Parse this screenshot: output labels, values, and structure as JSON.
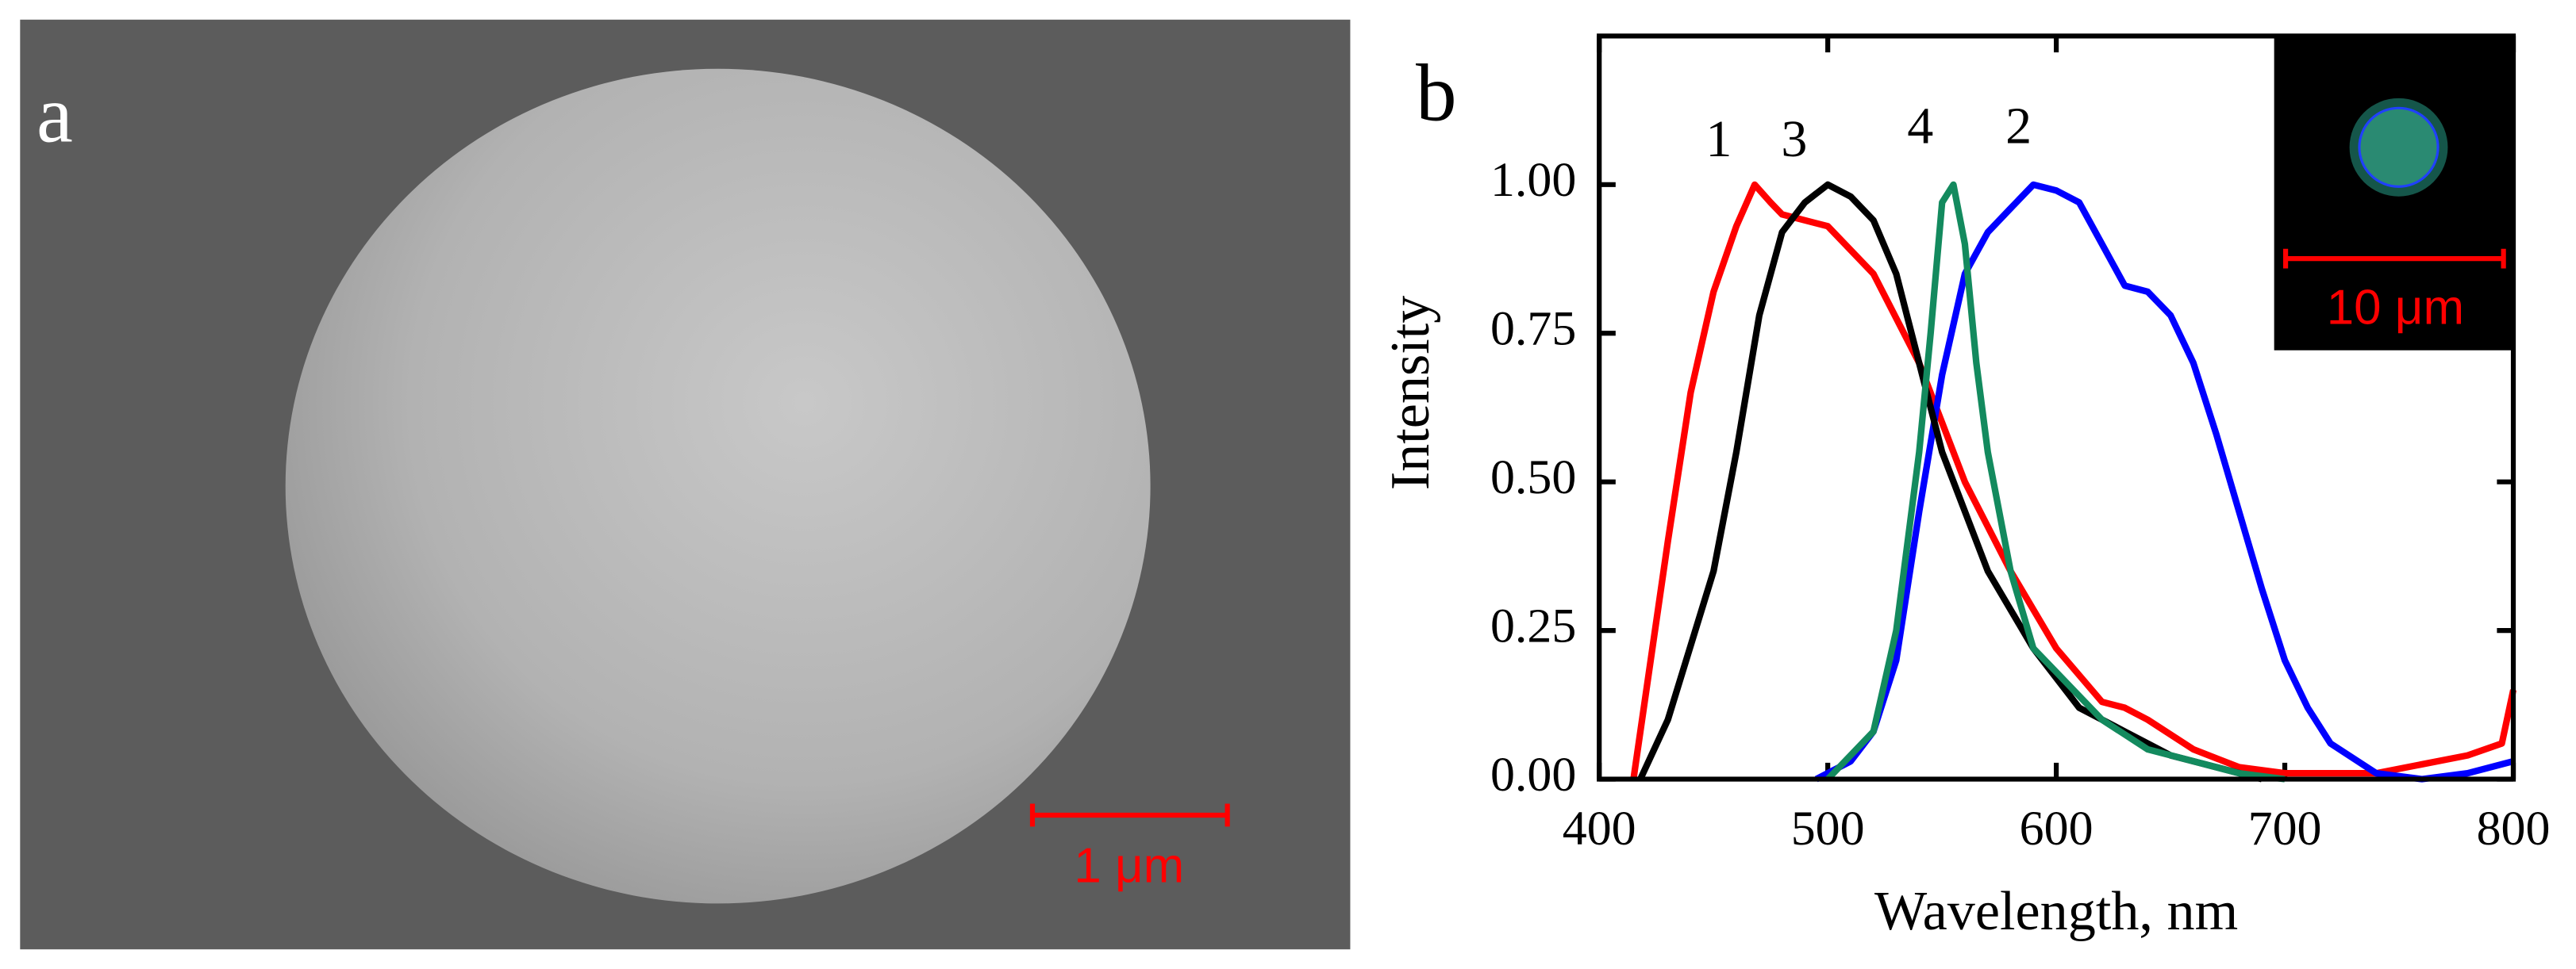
{
  "panel_a": {
    "label": "a",
    "scale_bar": "1 μm"
  },
  "chart_data": {
    "type": "line",
    "panel_label": "b",
    "x_label": "Wavelength, nm",
    "y_label": "Intensity",
    "inset_scale_bar": "10 μm",
    "xlim": [
      400,
      800
    ],
    "xticks": [
      400,
      500,
      600,
      700,
      800
    ],
    "ylim": [
      0,
      1.25
    ],
    "yticks": [
      {
        "value": 0,
        "label": "0.00"
      },
      {
        "value": 0.25,
        "label": "0.25"
      },
      {
        "value": 0.5,
        "label": "0.50"
      },
      {
        "value": 0.75,
        "label": "0.75"
      },
      {
        "value": 1,
        "label": "1.00"
      }
    ],
    "series": [
      {
        "name": "1",
        "color": "#ff0000",
        "x": [
          415,
          430,
          440,
          450,
          460,
          468,
          475,
          480,
          500,
          520,
          540,
          560,
          580,
          600,
          620,
          630,
          640,
          660,
          680,
          700,
          740,
          780,
          795,
          800
        ],
        "values": [
          0,
          0.4,
          0.65,
          0.82,
          0.93,
          1.0,
          0.97,
          0.95,
          0.93,
          0.85,
          0.7,
          0.5,
          0.35,
          0.22,
          0.13,
          0.12,
          0.1,
          0.05,
          0.02,
          0.01,
          0.01,
          0.04,
          0.06,
          0.15
        ]
      },
      {
        "name": "2",
        "color": "#0000ff",
        "x": [
          495,
          510,
          520,
          530,
          540,
          550,
          560,
          570,
          580,
          590,
          600,
          610,
          620,
          630,
          640,
          650,
          660,
          670,
          680,
          690,
          700,
          710,
          720,
          740,
          760,
          780,
          800
        ],
        "values": [
          0,
          0.03,
          0.08,
          0.2,
          0.45,
          0.68,
          0.85,
          0.92,
          0.96,
          1.0,
          0.99,
          0.97,
          0.9,
          0.83,
          0.82,
          0.78,
          0.7,
          0.58,
          0.45,
          0.32,
          0.2,
          0.12,
          0.06,
          0.01,
          0,
          0.01,
          0.03
        ]
      },
      {
        "name": "3",
        "color": "#000000",
        "x": [
          418,
          430,
          450,
          460,
          470,
          480,
          490,
          500,
          510,
          520,
          530,
          540,
          550,
          570,
          590,
          610,
          630,
          650,
          670,
          690
        ],
        "values": [
          0,
          0.1,
          0.35,
          0.55,
          0.78,
          0.92,
          0.97,
          1.0,
          0.98,
          0.94,
          0.85,
          0.7,
          0.55,
          0.35,
          0.22,
          0.12,
          0.08,
          0.04,
          0.02,
          0
        ]
      },
      {
        "name": "4",
        "color": "#138a5e",
        "x": [
          500,
          520,
          530,
          540,
          545,
          550,
          555,
          560,
          565,
          570,
          580,
          590,
          600,
          620,
          640,
          660,
          680,
          700
        ],
        "values": [
          0,
          0.08,
          0.25,
          0.55,
          0.75,
          0.97,
          1.0,
          0.9,
          0.7,
          0.55,
          0.35,
          0.22,
          0.18,
          0.1,
          0.05,
          0.03,
          0.01,
          0
        ]
      }
    ]
  }
}
